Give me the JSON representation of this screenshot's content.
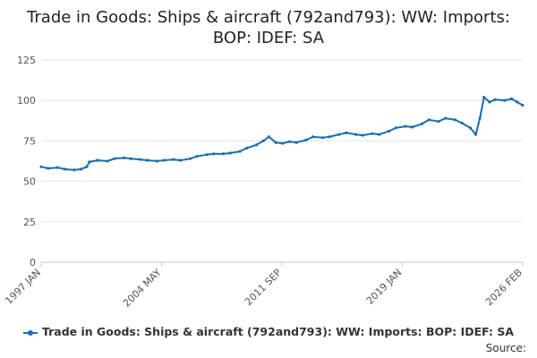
{
  "chart_data": {
    "type": "line",
    "title_line1": "Trade in Goods: Ships & aircraft (792and793): WW: Imports:",
    "title_line2": "BOP: IDEF: SA",
    "ylim": [
      0,
      125
    ],
    "y_ticks": [
      "0",
      "25",
      "50",
      "75",
      "100",
      "125"
    ],
    "x_ticks": [
      "1997 JAN",
      "2004 MAY",
      "2011 SEP",
      "2019 JAN",
      "2026 FEB"
    ],
    "grid": true,
    "legend_position": "bottom",
    "x_start": "1997-01",
    "x_end": "2026-02",
    "series": [
      {
        "name": "Trade in Goods: Ships & aircraft (792and793): WW: Imports: BOP: IDEF: SA",
        "color": "#1a6fac",
        "points": [
          [
            "1997-01",
            59
          ],
          [
            "1997-06",
            58
          ],
          [
            "1998-01",
            58.5
          ],
          [
            "1998-06",
            57.5
          ],
          [
            "1999-01",
            57
          ],
          [
            "1999-06",
            57.5
          ],
          [
            "1999-10",
            59
          ],
          [
            "1999-12",
            62
          ],
          [
            "2000-06",
            63
          ],
          [
            "2001-01",
            62.5
          ],
          [
            "2001-06",
            64
          ],
          [
            "2002-01",
            64.5
          ],
          [
            "2002-06",
            64
          ],
          [
            "2003-01",
            63.5
          ],
          [
            "2003-06",
            63
          ],
          [
            "2004-01",
            62.5
          ],
          [
            "2004-06",
            63
          ],
          [
            "2005-01",
            63.5
          ],
          [
            "2005-06",
            63
          ],
          [
            "2006-01",
            64
          ],
          [
            "2006-06",
            65.5
          ],
          [
            "2007-01",
            66.5
          ],
          [
            "2007-06",
            67
          ],
          [
            "2008-01",
            67
          ],
          [
            "2008-06",
            67.5
          ],
          [
            "2009-01",
            68.5
          ],
          [
            "2009-06",
            70.5
          ],
          [
            "2010-01",
            72.5
          ],
          [
            "2010-06",
            75
          ],
          [
            "2010-10",
            77.5
          ],
          [
            "2011-03",
            74
          ],
          [
            "2011-08",
            73.5
          ],
          [
            "2012-01",
            74.5
          ],
          [
            "2012-06",
            74
          ],
          [
            "2013-01",
            75.5
          ],
          [
            "2013-06",
            77.5
          ],
          [
            "2014-01",
            77
          ],
          [
            "2014-06",
            77.5
          ],
          [
            "2015-01",
            79
          ],
          [
            "2015-06",
            80
          ],
          [
            "2016-01",
            79
          ],
          [
            "2016-06",
            78.5
          ],
          [
            "2017-01",
            79.5
          ],
          [
            "2017-06",
            79
          ],
          [
            "2018-01",
            81
          ],
          [
            "2018-06",
            83
          ],
          [
            "2019-01",
            84
          ],
          [
            "2019-06",
            83.5
          ],
          [
            "2020-01",
            85.5
          ],
          [
            "2020-06",
            88
          ],
          [
            "2021-01",
            87
          ],
          [
            "2021-06",
            89
          ],
          [
            "2022-01",
            88
          ],
          [
            "2022-06",
            86
          ],
          [
            "2022-12",
            83
          ],
          [
            "2023-04",
            79
          ],
          [
            "2023-07",
            89
          ],
          [
            "2023-10",
            102
          ],
          [
            "2024-02",
            99
          ],
          [
            "2024-06",
            100.5
          ],
          [
            "2025-01",
            100
          ],
          [
            "2025-06",
            101
          ],
          [
            "2025-10",
            99
          ],
          [
            "2026-02",
            97
          ]
        ]
      }
    ]
  },
  "legend": {
    "label": "Trade in Goods: Ships & aircraft (792and793): WW: Imports: BOP: IDEF: SA"
  },
  "source": {
    "label": "Source:"
  }
}
